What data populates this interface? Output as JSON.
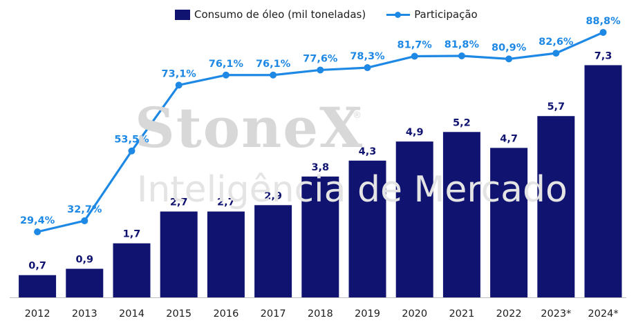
{
  "chart_data": {
    "type": "bar+line",
    "categories": [
      "2012",
      "2013",
      "2014",
      "2015",
      "2016",
      "2017",
      "2018",
      "2019",
      "2020",
      "2021",
      "2022",
      "2023*",
      "2024*"
    ],
    "series": [
      {
        "name": "Consumo de óleo (mil toneladas)",
        "type": "bar",
        "values": [
          0.7,
          0.9,
          1.7,
          2.7,
          2.7,
          2.9,
          3.8,
          4.3,
          4.9,
          5.2,
          4.7,
          5.7,
          7.3
        ],
        "labels": [
          "0,7",
          "0,9",
          "1,7",
          "2,7",
          "2,7",
          "2,9",
          "3,8",
          "4,3",
          "4,9",
          "5,2",
          "4,7",
          "5,7",
          "7,3"
        ]
      },
      {
        "name": "Participação",
        "type": "line",
        "values": [
          29.4,
          32.7,
          53.5,
          73.1,
          76.1,
          76.1,
          77.6,
          78.3,
          81.7,
          81.8,
          80.9,
          82.6,
          88.8
        ],
        "labels": [
          "29,4%",
          "32,7%",
          "53,5%",
          "73,1%",
          "76,1%",
          "76,1%",
          "77,6%",
          "78,3%",
          "81,7%",
          "81,8%",
          "80,9%",
          "82,6%",
          "88,8%"
        ]
      }
    ],
    "legend_position": "top-center",
    "grid": false
  },
  "watermark": {
    "line1": "StoneX",
    "reg": "®",
    "line2": "Inteligência de Mercado"
  },
  "colors": {
    "bar": "#101470",
    "line": "#1e88e5",
    "axis": "#bdbdbd"
  }
}
